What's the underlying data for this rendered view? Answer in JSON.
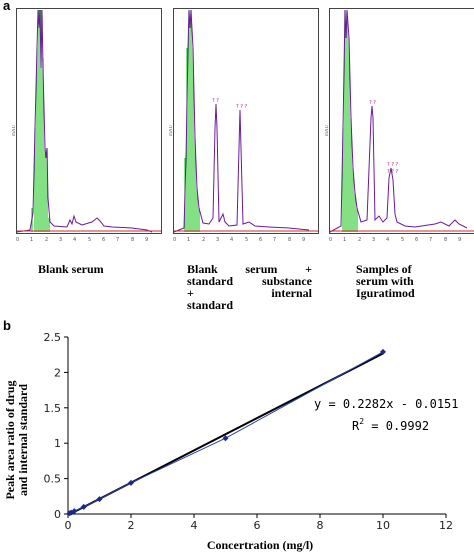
{
  "panels": {
    "a": {
      "label": "a",
      "chromatograms": [
        {
          "caption_lines": [
            "Blank serum"
          ]
        },
        {
          "caption_lines": [
            "Blank    serum    +",
            "standard  substance",
            "+         internal",
            "standard"
          ]
        },
        {
          "caption_lines": [
            "Samples of",
            "serum with",
            "Iguratimod"
          ]
        }
      ]
    },
    "b": {
      "label": "b"
    }
  },
  "chart_data": {
    "type": "scatter",
    "xlabel": "Concertration (mg/l)",
    "ylabel_lines": [
      "Peak area ratio of drug",
      "and internal standard"
    ],
    "xlim": [
      0,
      12
    ],
    "ylim": [
      0,
      2.5
    ],
    "xticks": [
      0,
      2,
      4,
      6,
      8,
      10,
      12
    ],
    "yticks": [
      0,
      0.5,
      1,
      1.5,
      2,
      2.5
    ],
    "xtick_labels": [
      "0",
      "2",
      "4",
      "6",
      "8",
      "10",
      "12"
    ],
    "ytick_labels": [
      "0",
      "0.5",
      "1",
      "1.5",
      "2",
      "2.5"
    ],
    "series": [
      {
        "x": [
          0.05,
          0.1,
          0.2,
          0.5,
          1,
          2,
          5,
          10
        ],
        "y": [
          0.01,
          0.02,
          0.04,
          0.1,
          0.21,
          0.44,
          1.07,
          2.29
        ]
      }
    ],
    "fit": {
      "slope": 0.2282,
      "intercept": -0.0151
    },
    "equation": "y = 0.2282x - 0.0151",
    "r2_label": "R",
    "r2_exponent": "2",
    "r2_value": " = 0.9992",
    "colors": {
      "marker": "#1a2a8c",
      "fit_line": "#000000",
      "data_line": "#2b3fb0"
    }
  }
}
